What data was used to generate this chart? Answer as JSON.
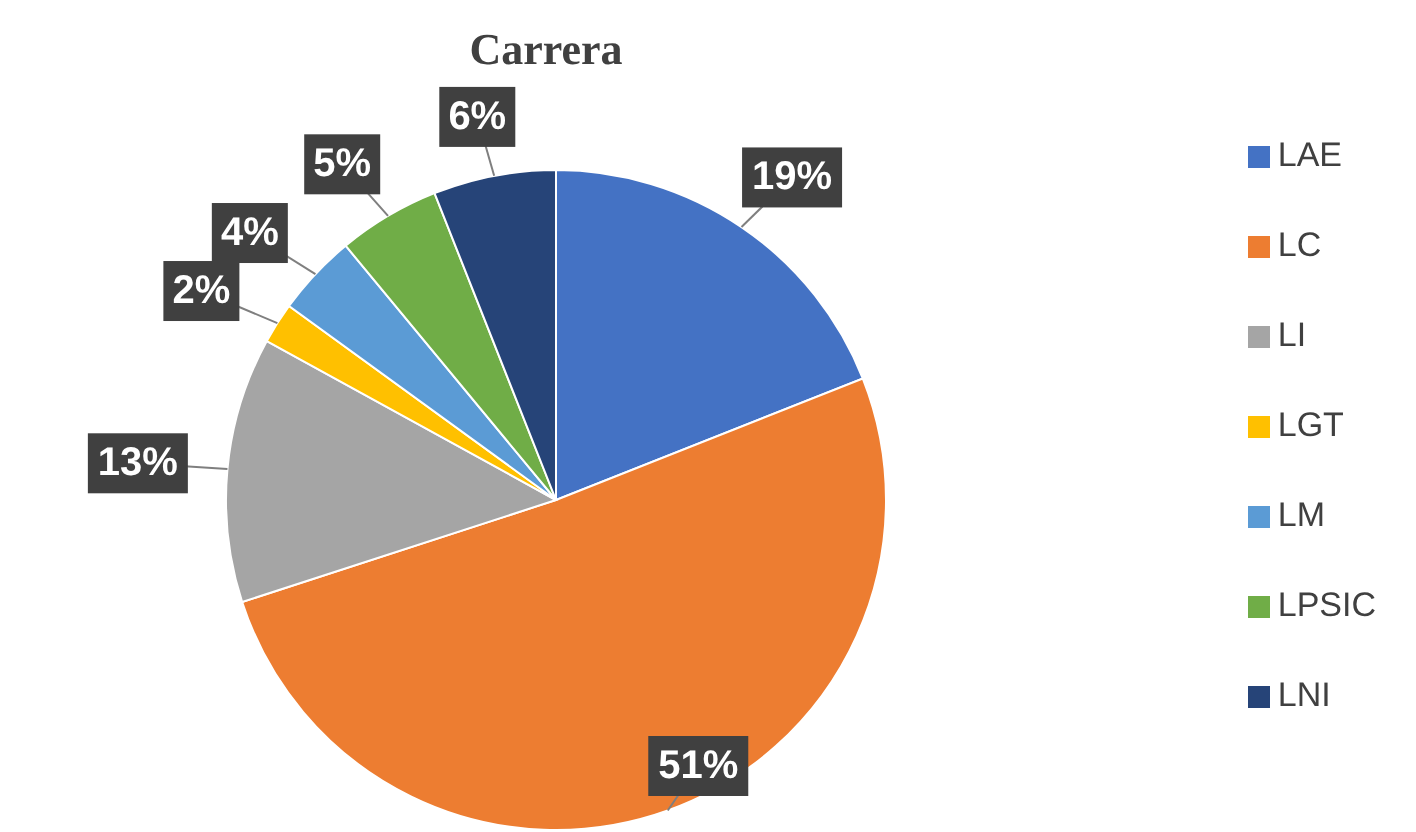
{
  "chart_data": {
    "type": "pie",
    "title": "Carrera",
    "categories": [
      "LAE",
      "LC",
      "LI",
      "LGT",
      "LM",
      "LPSIC",
      "LNI"
    ],
    "values": [
      19,
      51,
      13,
      2,
      4,
      5,
      6
    ],
    "value_labels": [
      "19%",
      "51%",
      "13%",
      "2%",
      "4%",
      "5%",
      "6%"
    ],
    "colors": [
      "#4472c4",
      "#ed7d31",
      "#a5a5a5",
      "#ffc000",
      "#5b9bd5",
      "#70ad47",
      "#264478"
    ],
    "legend": "right"
  }
}
